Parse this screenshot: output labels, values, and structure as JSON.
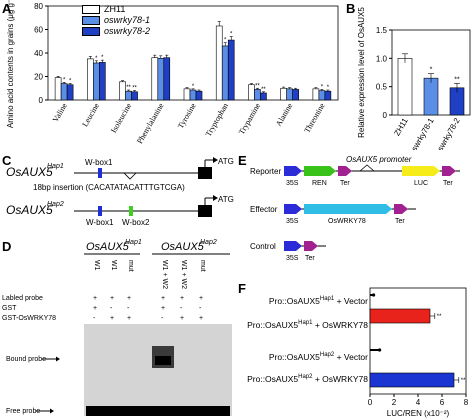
{
  "panels": {
    "A": "A",
    "B": "B",
    "C": "C",
    "D": "D",
    "E": "E",
    "F": "F"
  },
  "colors": {
    "zh11": "#ffffff",
    "wrky1": "#5b8ee6",
    "wrky2": "#1f3fc4",
    "red": "#e8231c",
    "blue": "#1b35d2",
    "green": "#39c21a",
    "yellow": "#f5ec19",
    "cyan": "#2fbde6",
    "purple": "#a0218f",
    "arrow": "#2b2bd8"
  },
  "chart_data": [
    {
      "type": "bar",
      "panel": "A",
      "ylabel": "Amino acid contents in grains (μg g⁻¹ DW)",
      "ylim": [
        0,
        80
      ],
      "yticks": [
        0,
        20,
        40,
        60,
        80
      ],
      "categories": [
        "Valine",
        "Leucine",
        "Isoleucine",
        "Phenylalanine",
        "Tyrosine",
        "Tryptophan",
        "Trypamine",
        "Alanine",
        "Threonine"
      ],
      "series": [
        {
          "name": "ZH11",
          "values": [
            19,
            35,
            15.5,
            36,
            9.5,
            63,
            13,
            10,
            9.5
          ]
        },
        {
          "name": "oswrky78-1",
          "values": [
            14,
            31.5,
            7.5,
            35.5,
            8.5,
            46,
            9,
            9.5,
            8
          ]
        },
        {
          "name": "oswrky78-2",
          "values": [
            13,
            32,
            7,
            36,
            7.5,
            51,
            6,
            9,
            7.5
          ]
        }
      ],
      "significance": [
        [
          "",
          "*",
          "*"
        ],
        [
          "",
          "*",
          "*"
        ],
        [
          "",
          "**",
          "**"
        ],
        [
          "",
          "",
          ""
        ],
        [
          "",
          "*",
          ""
        ],
        [
          "",
          "*",
          "*"
        ],
        [
          "",
          "**",
          "**"
        ],
        [
          "",
          "",
          ""
        ],
        [
          "",
          "*",
          "*"
        ]
      ]
    },
    {
      "type": "bar",
      "panel": "B",
      "ylabel": "Relative expression level of OsAUX5",
      "ylim": [
        0,
        1.5
      ],
      "yticks": [
        "0",
        "0.5",
        "1.0",
        "1.5"
      ],
      "categories": [
        "ZH11",
        "oswrky78-1",
        "oswrky78-2"
      ],
      "values": [
        1.0,
        0.65,
        0.48
      ],
      "significance": [
        "",
        "*",
        "**"
      ]
    },
    {
      "type": "bar",
      "panel": "F",
      "xlabel": "LUC/REN (x10⁻²)",
      "xlim": [
        0,
        8
      ],
      "xticks": [
        "0",
        "2",
        "4",
        "6",
        "8"
      ],
      "categories": [
        "Pro::OsAUX5 Hap1 + Vector",
        "Pro::OsAUX5 Hap1 + OsWRKY78",
        "Pro::OsAUX5 Hap2 + Vector",
        "Pro::OsAUX5 Hap2 + OsWRKY78"
      ],
      "values": [
        0.3,
        5.0,
        0.8,
        7.0
      ],
      "significance": [
        "",
        "**",
        "",
        "**"
      ]
    }
  ],
  "legendA": {
    "items": [
      "ZH11",
      "oswrky78-1",
      "oswrky78-2"
    ]
  },
  "panelC": {
    "hap1_name": "OsAUX5",
    "hap1_sup": "Hap1",
    "hap2_name": "OsAUX5",
    "hap2_sup": "Hap2",
    "wbox1": "W-box1",
    "wbox2": "W-box2",
    "insertion_label": "18bp insertion (CACATATACATTTGTCGA)",
    "atg": "ATG"
  },
  "panelD": {
    "hap1_title": "OsAUX5",
    "hap1_sup": "Hap1",
    "hap2_title": "OsAUX5",
    "hap2_sup": "Hap2",
    "lanes": [
      "W1",
      "W1",
      "mut",
      "W1 + W2",
      "W1 + W2",
      "mut"
    ],
    "row_labels": [
      "Labled probe",
      "GST",
      "GST-OsWRKY78"
    ],
    "rows": [
      [
        "+",
        "+",
        "+",
        "+",
        "+",
        "+"
      ],
      [
        "+",
        "-",
        "-",
        "+",
        "-",
        "-"
      ],
      [
        "-",
        "+",
        "+",
        "-",
        "+",
        "+"
      ]
    ],
    "bound": "Bound probe",
    "free": "Free probe"
  },
  "panelE": {
    "reporter": "Reporter",
    "effector": "Effector",
    "control": "Control",
    "promoter": "OsAUX5 promoter",
    "p35s": "35S",
    "ren": "REN",
    "ter": "Ter",
    "luc": "LUC",
    "wrky": "OsWRKY78"
  },
  "panelF_rows": [
    {
      "pre": "Pro::OsAUX5",
      "sup": "Hap1",
      "post": " + Vector"
    },
    {
      "pre": "Pro::OsAUX5",
      "sup": "Hap1",
      "post": " + OsWRKY78"
    },
    {
      "pre": "Pro::OsAUX5",
      "sup": "Hap2",
      "post": " + Vector"
    },
    {
      "pre": "Pro::OsAUX5",
      "sup": "Hap2",
      "post": " + OsWRKY78"
    }
  ]
}
